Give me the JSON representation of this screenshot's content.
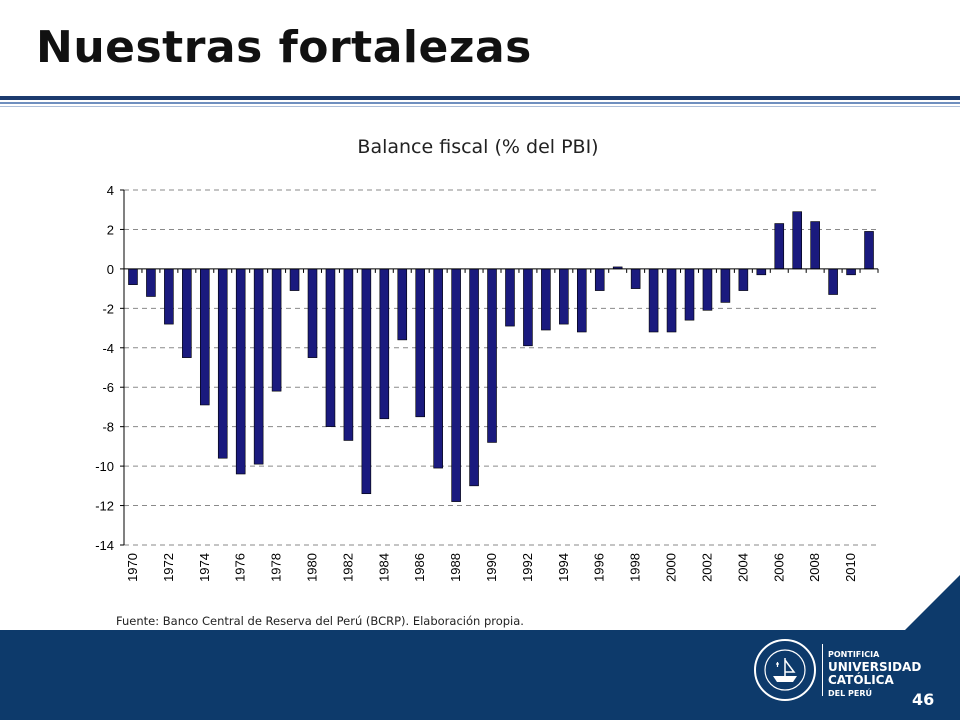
{
  "slide": {
    "title": "Nuestras fortalezas",
    "source": "Fuente: Banco Central de Reserva del Perú (BCRP). Elaboración propia.",
    "page_number": "46",
    "logo": {
      "line1": "PONTIFICIA",
      "line2": "UNIVERSIDAD",
      "line3": "CATÓLICA",
      "line4": "DEL PERÚ"
    }
  },
  "colors": {
    "bar_fill": "#1a1a7e",
    "bar_stroke": "#000000",
    "footer": "#0d3a6b",
    "title_rule": "#1c3a6e"
  },
  "chart_data": {
    "type": "bar",
    "title": "Balance fiscal (% del PBI)",
    "xlabel": "",
    "ylabel": "",
    "ylim": [
      -14,
      4
    ],
    "yticks": [
      4,
      2,
      0,
      -2,
      -4,
      -6,
      -8,
      -10,
      -12,
      -14
    ],
    "grid": true,
    "legend": "none",
    "x_tick_labels": [
      "1970",
      "1972",
      "1974",
      "1976",
      "1978",
      "1980",
      "1982",
      "1984",
      "1986",
      "1988",
      "1990",
      "1992",
      "1994",
      "1996",
      "1998",
      "2000",
      "2002",
      "2004",
      "2006",
      "2008",
      "2010"
    ],
    "categories": [
      1970,
      1971,
      1972,
      1973,
      1974,
      1975,
      1976,
      1977,
      1978,
      1979,
      1980,
      1981,
      1982,
      1983,
      1984,
      1985,
      1986,
      1987,
      1988,
      1989,
      1990,
      1991,
      1992,
      1993,
      1994,
      1995,
      1996,
      1997,
      1998,
      1999,
      2000,
      2001,
      2002,
      2003,
      2004,
      2005,
      2006,
      2007,
      2008,
      2009,
      2010,
      2011
    ],
    "values": [
      -0.8,
      -1.4,
      -2.8,
      -4.5,
      -6.9,
      -9.6,
      -10.4,
      -9.9,
      -6.2,
      -1.1,
      -4.5,
      -8.0,
      -8.7,
      -11.4,
      -7.6,
      -3.6,
      -7.5,
      -10.1,
      -11.8,
      -11.0,
      -8.8,
      -2.9,
      -3.9,
      -3.1,
      -2.8,
      -3.2,
      -1.1,
      0.1,
      -1.0,
      -3.2,
      -3.2,
      -2.6,
      -2.1,
      -1.7,
      -1.1,
      -0.3,
      2.3,
      2.9,
      2.4,
      -1.3,
      -0.3,
      1.9
    ]
  }
}
